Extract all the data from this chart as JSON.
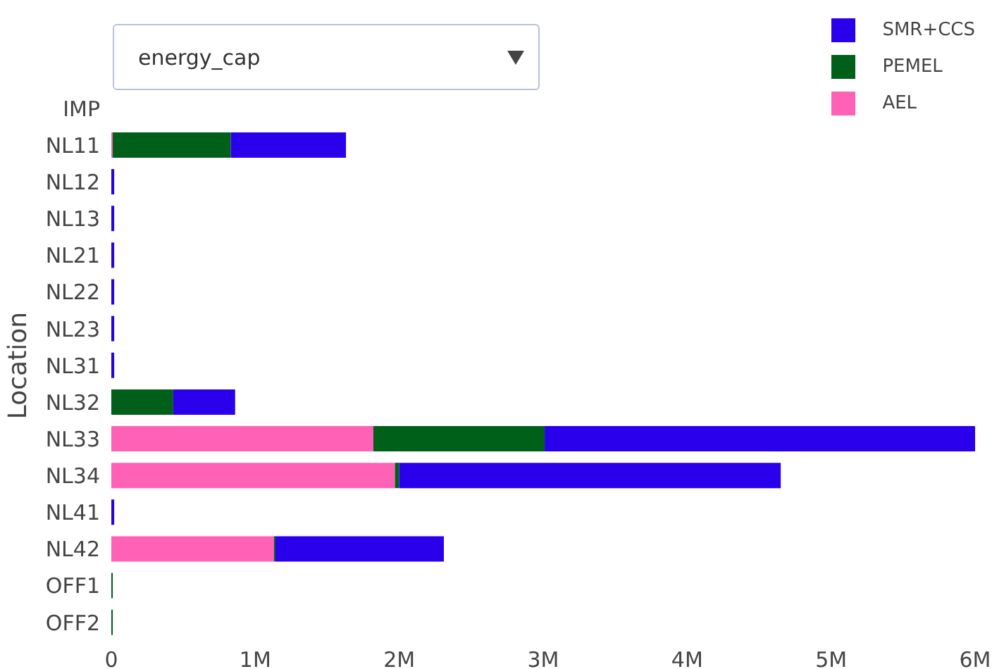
{
  "chart_data": {
    "type": "bar",
    "orientation": "horizontal",
    "stacked": true,
    "ylabel": "Location",
    "annotations": [
      "energy_cap"
    ],
    "categories": [
      "IMP",
      "NL11",
      "NL12",
      "NL13",
      "NL21",
      "NL22",
      "NL23",
      "NL31",
      "NL32",
      "NL33",
      "NL34",
      "NL41",
      "NL42",
      "OFF1",
      "OFF2"
    ],
    "series": [
      {
        "name": "AEL",
        "color": "#ff61b6",
        "values": [
          null,
          10000,
          0,
          0,
          0,
          0,
          0,
          0,
          0,
          1820000,
          1970000,
          0,
          1130000,
          0,
          0
        ]
      },
      {
        "name": "PEMEL",
        "color": "#005f18",
        "values": [
          null,
          820000,
          0,
          0,
          0,
          0,
          0,
          0,
          430000,
          1190000,
          30000,
          0,
          10000,
          10000,
          10000
        ]
      },
      {
        "name": "SMR+CCS",
        "color": "#2a00ec",
        "values": [
          null,
          800000,
          20000,
          20000,
          20000,
          20000,
          20000,
          20000,
          430000,
          2990000,
          2650000,
          20000,
          1170000,
          0,
          0
        ]
      }
    ],
    "xlim": [
      0,
      6000000
    ],
    "xticks": [
      0,
      {
        "value": 1000000,
        "label": "1M"
      },
      {
        "value": 2000000,
        "label": "2M"
      },
      {
        "value": 3000000,
        "label": "3M"
      },
      {
        "value": 4000000,
        "label": "4M"
      },
      {
        "value": 5000000,
        "label": "5M"
      },
      {
        "value": 6000000,
        "label": "6M"
      }
    ],
    "grid": false,
    "legend": "top right"
  }
}
